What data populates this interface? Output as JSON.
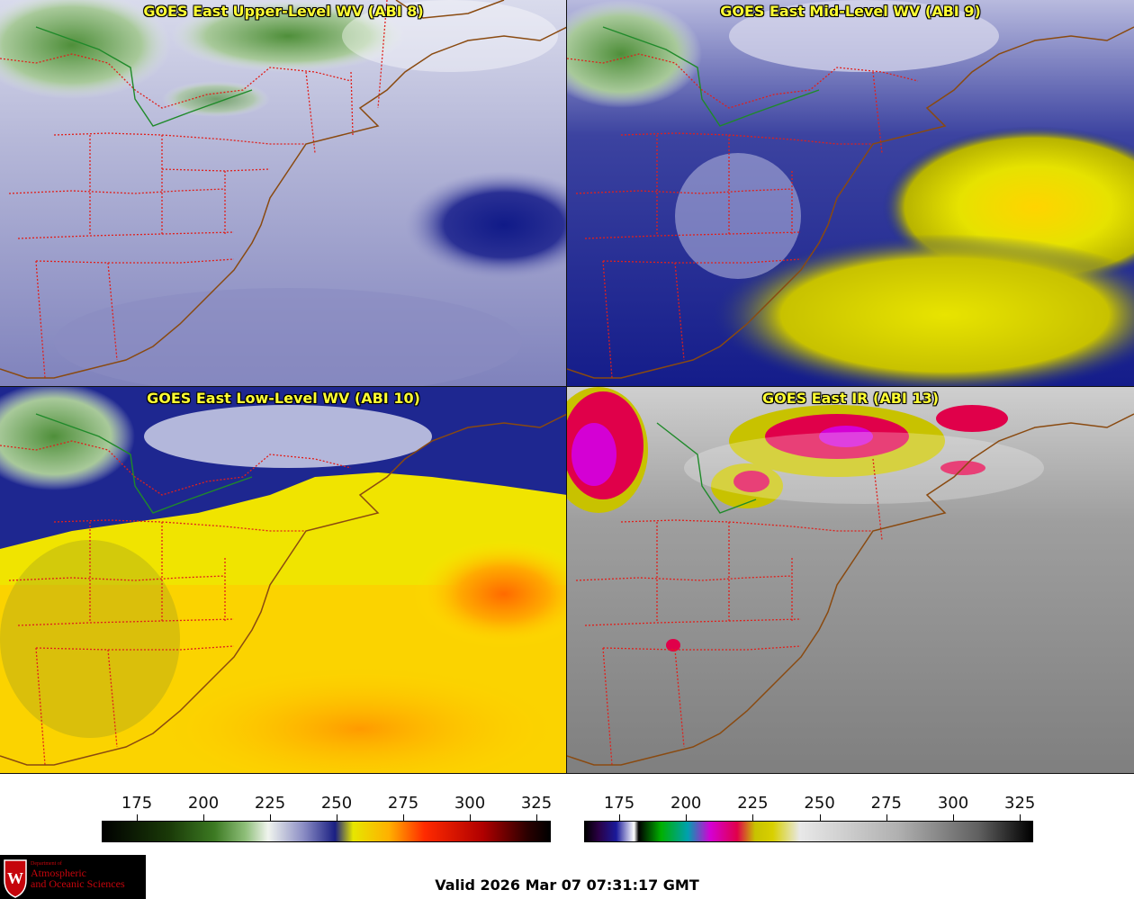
{
  "panels": [
    {
      "title": "GOES East Upper-Level WV (ABI 8)",
      "palette": "wv",
      "scheme": "upper"
    },
    {
      "title": "GOES East Mid-Level WV (ABI 9)",
      "palette": "wv",
      "scheme": "mid"
    },
    {
      "title": "GOES East Low-Level WV (ABI 10)",
      "palette": "wv",
      "scheme": "low"
    },
    {
      "title": "GOES East IR (ABI 13)",
      "palette": "ir",
      "scheme": "ir"
    }
  ],
  "colorbars": {
    "left": {
      "ticks": [
        "175",
        "200",
        "225",
        "250",
        "275",
        "300",
        "325"
      ],
      "colors": [
        "#000000",
        "#2d5e10",
        "#6aa54d",
        "#e8f0e4",
        "#2a2e8a",
        "#e6e600",
        "#ff9900",
        "#e00000",
        "#550000",
        "#000000"
      ]
    },
    "right": {
      "ticks": [
        "175",
        "200",
        "225",
        "250",
        "275",
        "300",
        "325"
      ]
    }
  },
  "logo": {
    "line1": "Department of",
    "line2": "Atmospheric",
    "line3": "and Oceanic Sciences"
  },
  "valid_time": "Valid 2026 Mar 07 07:31:17 GMT"
}
